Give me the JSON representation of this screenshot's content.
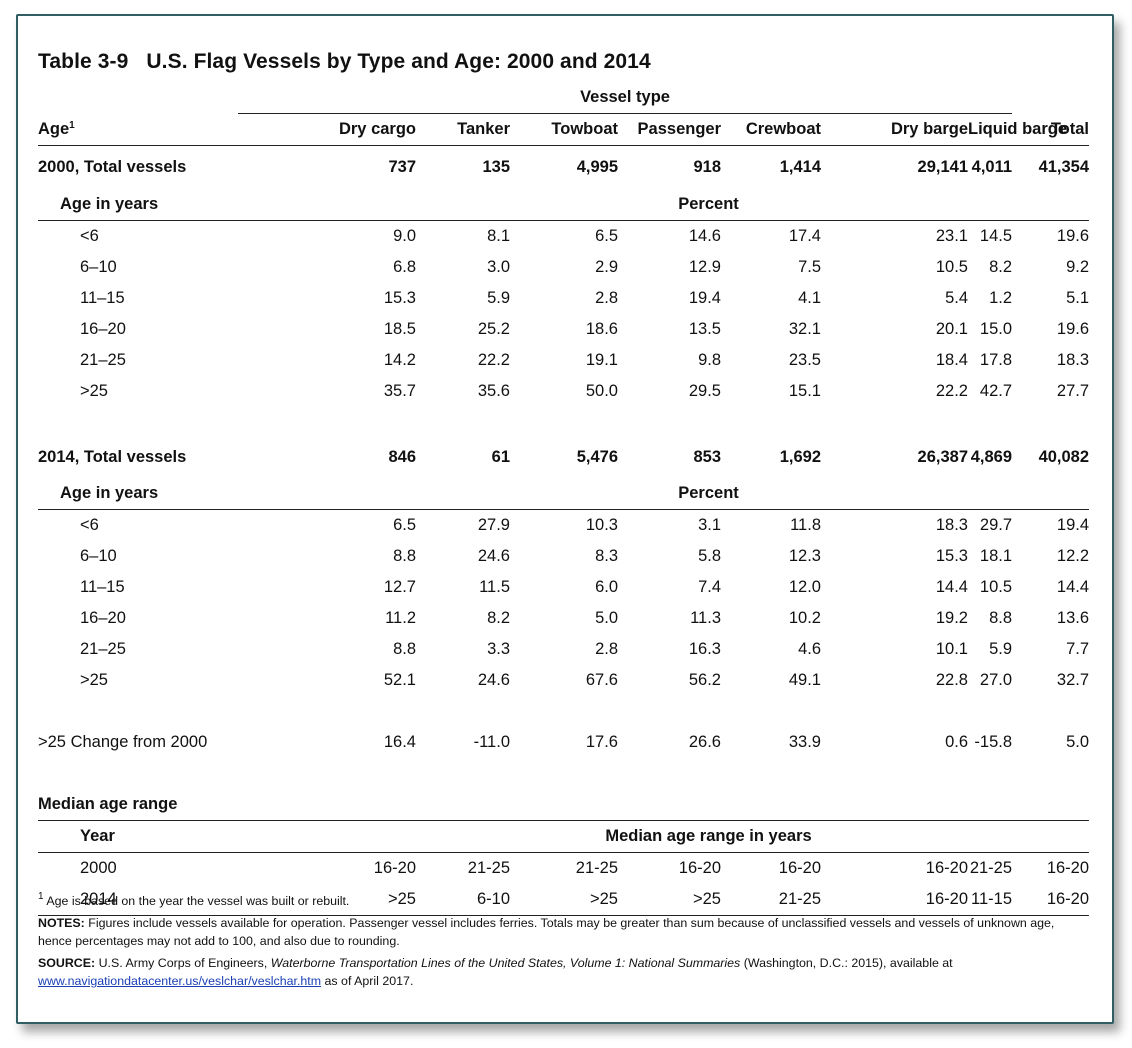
{
  "title": {
    "number": "Table 3-9",
    "text": "U.S. Flag Vessels by Type and Age: 2000 and 2014"
  },
  "header": {
    "group_label": "Vessel type",
    "age_label": "Age",
    "age_footnote_mark": "1",
    "columns": [
      "Dry cargo",
      "Tanker",
      "Towboat",
      "Passenger",
      "Crewboat",
      "Dry barge",
      "Liquid barge",
      "Total"
    ]
  },
  "sections": [
    {
      "total_label": "2000, Total vessels",
      "totals": [
        "737",
        "135",
        "4,995",
        "918",
        "1,414",
        "29,141",
        "4,011",
        "41,354"
      ],
      "sub_label": "Age in years",
      "unit_label": "Percent",
      "rows": [
        {
          "age": "<6",
          "values": [
            "9.0",
            "8.1",
            "6.5",
            "14.6",
            "17.4",
            "23.1",
            "14.5",
            "19.6"
          ]
        },
        {
          "age": "6–10",
          "values": [
            "6.8",
            "3.0",
            "2.9",
            "12.9",
            "7.5",
            "10.5",
            "8.2",
            "9.2"
          ]
        },
        {
          "age": "11–15",
          "values": [
            "15.3",
            "5.9",
            "2.8",
            "19.4",
            "4.1",
            "5.4",
            "1.2",
            "5.1"
          ]
        },
        {
          "age": "16–20",
          "values": [
            "18.5",
            "25.2",
            "18.6",
            "13.5",
            "32.1",
            "20.1",
            "15.0",
            "19.6"
          ]
        },
        {
          "age": "21–25",
          "values": [
            "14.2",
            "22.2",
            "19.1",
            "9.8",
            "23.5",
            "18.4",
            "17.8",
            "18.3"
          ]
        },
        {
          "age": ">25",
          "values": [
            "35.7",
            "35.6",
            "50.0",
            "29.5",
            "15.1",
            "22.2",
            "42.7",
            "27.7"
          ]
        }
      ]
    },
    {
      "total_label": "2014, Total vessels",
      "totals": [
        "846",
        "61",
        "5,476",
        "853",
        "1,692",
        "26,387",
        "4,869",
        "40,082"
      ],
      "sub_label": "Age in years",
      "unit_label": "Percent",
      "rows": [
        {
          "age": "<6",
          "values": [
            "6.5",
            "27.9",
            "10.3",
            "3.1",
            "11.8",
            "18.3",
            "29.7",
            "19.4"
          ]
        },
        {
          "age": "6–10",
          "values": [
            "8.8",
            "24.6",
            "8.3",
            "5.8",
            "12.3",
            "15.3",
            "18.1",
            "12.2"
          ]
        },
        {
          "age": "11–15",
          "values": [
            "12.7",
            "11.5",
            "6.0",
            "7.4",
            "12.0",
            "14.4",
            "10.5",
            "14.4"
          ]
        },
        {
          "age": "16–20",
          "values": [
            "11.2",
            "8.2",
            "5.0",
            "11.3",
            "10.2",
            "19.2",
            "8.8",
            "13.6"
          ]
        },
        {
          "age": "21–25",
          "values": [
            "8.8",
            "3.3",
            "2.8",
            "16.3",
            "4.6",
            "10.1",
            "5.9",
            "7.7"
          ]
        },
        {
          "age": ">25",
          "values": [
            "52.1",
            "24.6",
            "67.6",
            "56.2",
            "49.1",
            "22.8",
            "27.0",
            "32.7"
          ]
        }
      ]
    }
  ],
  "change_row": {
    "label": ">25 Change from 2000",
    "values": [
      "16.4",
      "-11.0",
      "17.6",
      "26.6",
      "33.9",
      "0.6",
      "-15.8",
      "5.0"
    ]
  },
  "median": {
    "title": "Median age range",
    "year_label": "Year",
    "unit_label": "Median age range in years",
    "rows": [
      {
        "year": "2000",
        "values": [
          "16-20",
          "21-25",
          "21-25",
          "16-20",
          "16-20",
          "16-20",
          "21-25",
          "16-20"
        ]
      },
      {
        "year": "2014",
        "values": [
          ">25",
          "6-10",
          ">25",
          ">25",
          "21-25",
          "16-20",
          "11-15",
          "16-20"
        ]
      }
    ]
  },
  "notes": {
    "footnote_mark": "1",
    "footnote": "Age is based on the year the vessel was built or rebuilt.",
    "notes_label": "NOTES:",
    "notes_text": "Figures include vessels available for operation. Passenger vessel includes ferries. Totals may be greater than sum because of unclassified vessels and vessels of unknown age, hence percentages may not add to 100, and also due to rounding.",
    "source_label": "SOURCE:",
    "source_pre": "U.S. Army Corps of Engineers,",
    "source_title": "Waterborne Transportation Lines of the United States, Volume 1: National Summaries",
    "source_post": "(Washington, D.C.: 2015), available at",
    "source_link": "www.navigationdatacenter.us/veslchar/veslchar.htm",
    "source_end": "as of April 2017."
  },
  "colors": {
    "frame": "#2f5f62",
    "link": "#1a3fb5"
  }
}
